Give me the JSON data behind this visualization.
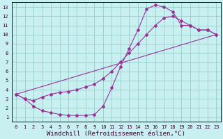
{
  "xlabel": "Windchill (Refroidissement éolien,°C)",
  "bg_color": "#c8f0f0",
  "grid_color": "#99cccc",
  "line_color": "#993399",
  "axis_color": "#330033",
  "xlim": [
    -0.5,
    23.5
  ],
  "ylim": [
    0.5,
    13.5
  ],
  "xticks": [
    0,
    1,
    2,
    3,
    4,
    5,
    6,
    7,
    8,
    9,
    10,
    11,
    12,
    13,
    14,
    15,
    16,
    17,
    18,
    19,
    20,
    21,
    22,
    23
  ],
  "yticks": [
    1,
    2,
    3,
    4,
    5,
    6,
    7,
    8,
    9,
    10,
    11,
    12,
    13
  ],
  "line1_x": [
    0,
    1,
    2,
    3,
    4,
    5,
    6,
    7,
    8,
    9,
    10,
    11,
    12,
    13,
    14,
    15,
    16,
    17,
    18,
    19,
    20,
    21,
    22,
    23
  ],
  "line1_y": [
    3.5,
    3.0,
    2.2,
    1.7,
    1.5,
    1.3,
    1.2,
    1.2,
    1.2,
    1.3,
    2.2,
    4.2,
    6.5,
    8.5,
    10.5,
    12.8,
    13.2,
    13.0,
    12.5,
    11.0,
    11.0,
    10.5,
    10.5,
    10.0
  ],
  "line2_x": [
    0,
    1,
    2,
    3,
    4,
    5,
    6,
    7,
    8,
    9,
    10,
    11,
    12,
    13,
    14,
    15,
    16,
    17,
    18,
    19,
    20,
    21,
    22,
    23
  ],
  "line2_y": [
    3.5,
    3.0,
    2.8,
    3.2,
    3.5,
    3.7,
    3.8,
    4.0,
    4.3,
    4.6,
    5.2,
    6.0,
    7.0,
    8.0,
    9.0,
    10.0,
    11.0,
    11.8,
    12.0,
    11.5,
    11.0,
    10.5,
    10.5,
    10.0
  ],
  "line3_x": [
    0,
    23
  ],
  "line3_y": [
    3.5,
    10.0
  ],
  "tick_fontsize": 5.0,
  "xlabel_fontsize": 6.5,
  "marker_size": 2.0,
  "linewidth": 0.8
}
